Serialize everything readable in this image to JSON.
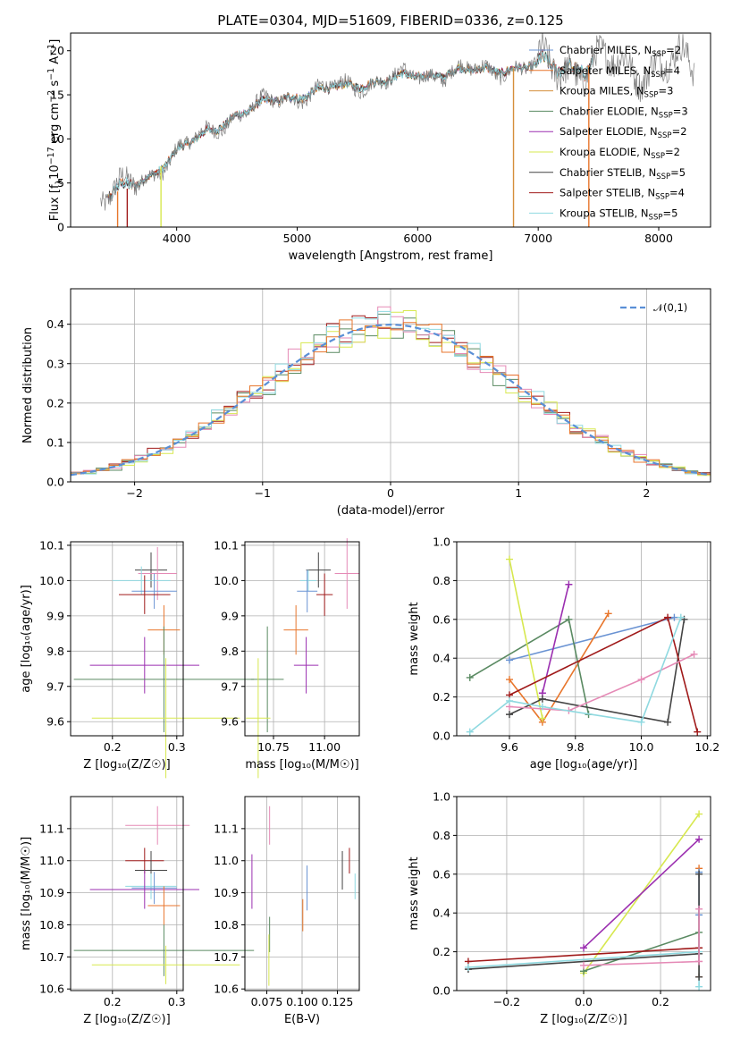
{
  "colors": {
    "c_miles": "#6a93d3",
    "s_miles": "#e8762c",
    "k_miles": "#d58f3b",
    "c_elodie": "#5a8a62",
    "s_elodie": "#9b2fb0",
    "k_elodie": "#d7e84f",
    "c_stelib": "#444444",
    "s_stelib": "#a01a1a",
    "k_stelib": "#8fd9e0",
    "pink": "#e58ab6",
    "normal": "#5a8fd6",
    "gray": "#7f7f7f"
  },
  "chart_data": [
    {
      "id": "spectrum",
      "type": "line",
      "title": "PLATE=0304, MJD=51609, FIBERID=0336, z=0.125",
      "xlabel": "wavelength [Angstrom, rest frame]",
      "ylabel_prefix": "Flux [f",
      "ylabel_sub": "λ",
      "ylabel_mid": "10",
      "ylabel_sup1": "−17",
      "ylabel_rest": " erg cm",
      "ylabel_sup2": "−2",
      "ylabel_s": " s",
      "ylabel_sup3": "−1",
      "ylabel_a": " A",
      "ylabel_sup4": "−1",
      "ylabel_end": "]",
      "xlim": [
        3120,
        8430
      ],
      "ylim": [
        0,
        22
      ],
      "xticks": [
        "4000",
        "5000",
        "6000",
        "7000",
        "8000"
      ],
      "yticks": [
        "0",
        "5",
        "10",
        "15",
        "20"
      ],
      "trend": [
        [
          3400,
          3.6
        ],
        [
          3600,
          4.4
        ],
        [
          3800,
          6.0
        ],
        [
          4000,
          8.6
        ],
        [
          4200,
          10.2
        ],
        [
          4500,
          12.8
        ],
        [
          4800,
          14.3
        ],
        [
          5200,
          15.5
        ],
        [
          5600,
          16.4
        ],
        [
          6000,
          17.2
        ],
        [
          6400,
          17.7
        ],
        [
          6800,
          18.0
        ],
        [
          7200,
          18.3
        ]
      ],
      "legend": [
        {
          "sub": "SSP",
          "label": "Chabrier MILES, N",
          "n": "=2",
          "color": "c_miles"
        },
        {
          "sub": "SSP",
          "label": "Salpeter MILES, N",
          "n": "=4",
          "color": "s_miles"
        },
        {
          "sub": "SSP",
          "label": "Kroupa MILES, N",
          "n": "=3",
          "color": "k_miles"
        },
        {
          "sub": "SSP",
          "label": "Chabrier ELODIE, N",
          "n": "=3",
          "color": "c_elodie"
        },
        {
          "sub": "SSP",
          "label": "Salpeter ELODIE, N",
          "n": "=2",
          "color": "s_elodie"
        },
        {
          "sub": "SSP",
          "label": "Kroupa ELODIE, N",
          "n": "=2",
          "color": "k_elodie"
        },
        {
          "sub": "SSP",
          "label": "Chabrier STELIB, N",
          "n": "=5",
          "color": "c_stelib"
        },
        {
          "sub": "SSP",
          "label": "Salpeter STELIB, N",
          "n": "=4",
          "color": "s_stelib"
        },
        {
          "sub": "SSP",
          "label": "Kroupa STELIB, N",
          "n": "=5",
          "color": "k_stelib"
        }
      ]
    },
    {
      "id": "residuals",
      "type": "histogram",
      "xlabel": "(data-model)/error",
      "ylabel": "Normed distribution",
      "xlim": [
        -2.5,
        2.5
      ],
      "ylim": [
        0,
        0.49
      ],
      "xticks": [
        -2,
        -1,
        0,
        1,
        2
      ],
      "xticklabels": [
        "−2",
        "−1",
        "0",
        "1",
        "2"
      ],
      "yticks": [
        0,
        0.1,
        0.2,
        0.3,
        0.4
      ],
      "yticklabels": [
        "0.0",
        "0.1",
        "0.2",
        "0.3",
        "0.4"
      ],
      "legend": "𝒩(0,1)",
      "normal": {
        "mean": 0,
        "sigma": 1
      },
      "series_colors": [
        "c_elodie",
        "s_stelib",
        "pink",
        "k_elodie",
        "k_stelib",
        "s_miles"
      ]
    },
    {
      "id": "age_vs_Z",
      "type": "errorbar",
      "xlabel": "Z [log₁₀(Z/Z☉)]",
      "ylabel": "age  [log₁₀(age/yr)]",
      "xlim": [
        0.135,
        0.31
      ],
      "ylim": [
        9.56,
        10.11
      ],
      "xticks": [
        0.2,
        0.3
      ],
      "xticklabels": [
        "0.2",
        "0.3"
      ],
      "yticks": [
        9.6,
        9.7,
        9.8,
        9.9,
        10.0,
        10.1
      ],
      "yticklabels": [
        "9.6",
        "9.7",
        "9.8",
        "9.9",
        "10.0",
        "10.1"
      ],
      "points": [
        {
          "x": 0.26,
          "xe": 0.025,
          "y": 10.03,
          "ye": 0.05,
          "color": "c_stelib"
        },
        {
          "x": 0.27,
          "xe": 0.03,
          "y": 10.02,
          "ye": 0.075,
          "color": "pink"
        },
        {
          "x": 0.245,
          "xe": 0.045,
          "y": 10.0,
          "ye": 0.04,
          "color": "k_stelib"
        },
        {
          "x": 0.265,
          "xe": 0.035,
          "y": 9.97,
          "ye": 0.05,
          "color": "c_miles"
        },
        {
          "x": 0.25,
          "xe": 0.04,
          "y": 9.96,
          "ye": 0.055,
          "color": "s_stelib"
        },
        {
          "x": 0.28,
          "xe": 0.025,
          "y": 9.86,
          "ye": 0.07,
          "color": "s_miles"
        },
        {
          "x": 0.25,
          "xe": 0.085,
          "y": 9.76,
          "ye": 0.08,
          "color": "s_elodie"
        },
        {
          "x": 0.28,
          "xe": 0.14,
          "y": 9.72,
          "ye": 0.15,
          "color": "c_elodie"
        },
        {
          "x": 0.283,
          "xe": 0.115,
          "y": 9.61,
          "ye": 0.17,
          "color": "k_elodie"
        }
      ]
    },
    {
      "id": "age_vs_mass",
      "type": "errorbar",
      "xlabel": "mass [log₁₀(M/M☉)]",
      "ylabel": "",
      "xlim": [
        10.61,
        11.17
      ],
      "ylim": [
        9.56,
        10.11
      ],
      "xticks": [
        10.75,
        11.0
      ],
      "xticklabels": [
        "10.75",
        "11.00"
      ],
      "yticks": [
        9.6,
        9.7,
        9.8,
        9.9,
        10.0,
        10.1
      ],
      "yticklabels": [
        "9.6",
        "9.7",
        "9.8",
        "9.9",
        "10.0",
        "10.1"
      ],
      "points": [
        {
          "x": 10.97,
          "xe": 0.06,
          "y": 10.03,
          "ye": 0.05,
          "color": "c_stelib"
        },
        {
          "x": 11.11,
          "xe": 0.06,
          "y": 10.02,
          "ye": 0.1,
          "color": "pink"
        },
        {
          "x": 10.92,
          "xe": 0.04,
          "y": 10.0,
          "ye": 0.03,
          "color": "k_stelib"
        },
        {
          "x": 10.915,
          "xe": 0.05,
          "y": 9.97,
          "ye": 0.06,
          "color": "c_miles"
        },
        {
          "x": 11.0,
          "xe": 0.04,
          "y": 9.96,
          "ye": 0.06,
          "color": "s_stelib"
        },
        {
          "x": 10.86,
          "xe": 0.06,
          "y": 9.86,
          "ye": 0.07,
          "color": "s_miles"
        },
        {
          "x": 10.91,
          "xe": 0.06,
          "y": 9.76,
          "ye": 0.08,
          "color": "s_elodie"
        },
        {
          "x": 10.72,
          "xe": 0.08,
          "y": 9.72,
          "ye": 0.15,
          "color": "c_elodie"
        },
        {
          "x": 10.675,
          "xe": 0.06,
          "y": 9.61,
          "ye": 0.17,
          "color": "k_elodie"
        }
      ]
    },
    {
      "id": "mass_weight_vs_age",
      "type": "line",
      "xlabel": "age  [log₁₀(age/yr)]",
      "ylabel": "mass weight",
      "xlim": [
        9.44,
        10.21
      ],
      "ylim": [
        0,
        1
      ],
      "xticks": [
        9.6,
        9.8,
        10.0,
        10.2
      ],
      "xticklabels": [
        "9.6",
        "9.8",
        "10.0",
        "10.2"
      ],
      "yticks": [
        0,
        0.2,
        0.4,
        0.6,
        0.8,
        1.0
      ],
      "yticklabels": [
        "0.0",
        "0.2",
        "0.4",
        "0.6",
        "0.8",
        "1.0"
      ],
      "series": [
        {
          "color": "c_miles",
          "x": [
            9.6,
            10.1
          ],
          "y": [
            0.39,
            0.61
          ]
        },
        {
          "color": "s_miles",
          "x": [
            9.6,
            9.7,
            9.9
          ],
          "y": [
            0.29,
            0.07,
            0.63
          ]
        },
        {
          "color": "c_elodie",
          "x": [
            9.48,
            9.78,
            9.84
          ],
          "y": [
            0.3,
            0.6,
            0.11
          ]
        },
        {
          "color": "s_elodie",
          "x": [
            9.7,
            9.78
          ],
          "y": [
            0.22,
            0.78
          ]
        },
        {
          "color": "k_elodie",
          "x": [
            9.6,
            9.7
          ],
          "y": [
            0.91,
            0.09
          ]
        },
        {
          "color": "c_stelib",
          "x": [
            9.6,
            9.7,
            10.08,
            10.13
          ],
          "y": [
            0.11,
            0.19,
            0.07,
            0.6
          ]
        },
        {
          "color": "s_stelib",
          "x": [
            9.6,
            10.08,
            10.17
          ],
          "y": [
            0.21,
            0.61,
            0.02
          ]
        },
        {
          "color": "pink",
          "x": [
            9.6,
            9.78,
            10.0,
            10.16
          ],
          "y": [
            0.15,
            0.13,
            0.29,
            0.42
          ]
        },
        {
          "color": "k_stelib",
          "x": [
            9.48,
            9.6,
            9.7,
            10.0,
            10.12
          ],
          "y": [
            0.02,
            0.18,
            0.15,
            0.07,
            0.61
          ]
        }
      ]
    },
    {
      "id": "mass_vs_Z",
      "type": "errorbar",
      "xlabel": "Z [log₁₀(Z/Z☉)]",
      "ylabel": "mass [log₁₀(M/M☉)]",
      "xlim": [
        0.135,
        0.31
      ],
      "ylim": [
        10.595,
        11.2
      ],
      "xticks": [
        0.2,
        0.3
      ],
      "xticklabels": [
        "0.2",
        "0.3"
      ],
      "yticks": [
        10.6,
        10.7,
        10.8,
        10.9,
        11.0,
        11.1
      ],
      "yticklabels": [
        "10.6",
        "10.7",
        "10.8",
        "10.9",
        "11.0",
        "11.1"
      ],
      "points": [
        {
          "x": 0.27,
          "xe": 0.05,
          "y": 11.11,
          "ye": 0.06,
          "color": "pink"
        },
        {
          "x": 0.25,
          "xe": 0.03,
          "y": 11.0,
          "ye": 0.04,
          "color": "s_stelib"
        },
        {
          "x": 0.26,
          "xe": 0.025,
          "y": 10.97,
          "ye": 0.06,
          "color": "c_stelib"
        },
        {
          "x": 0.26,
          "xe": 0.04,
          "y": 10.92,
          "ye": 0.04,
          "color": "k_stelib"
        },
        {
          "x": 0.265,
          "xe": 0.035,
          "y": 10.915,
          "ye": 0.05,
          "color": "c_miles"
        },
        {
          "x": 0.25,
          "xe": 0.085,
          "y": 10.91,
          "ye": 0.06,
          "color": "s_elodie"
        },
        {
          "x": 0.28,
          "xe": 0.025,
          "y": 10.86,
          "ye": 0.06,
          "color": "s_miles"
        },
        {
          "x": 0.28,
          "xe": 0.14,
          "y": 10.72,
          "ye": 0.08,
          "color": "c_elodie"
        },
        {
          "x": 0.283,
          "xe": 0.115,
          "y": 10.675,
          "ye": 0.06,
          "color": "k_elodie"
        }
      ]
    },
    {
      "id": "mass_vs_ebv",
      "type": "errorbar",
      "xlabel": "E(B-V)",
      "ylabel": "",
      "xlim": [
        0.0595,
        0.1405
      ],
      "ylim": [
        10.595,
        11.2
      ],
      "xticks": [
        0.075,
        0.1,
        0.125
      ],
      "xticklabels": [
        "0.075",
        "0.100",
        "0.125"
      ],
      "yticks": [
        10.6,
        10.7,
        10.8,
        10.9,
        11.0,
        11.1
      ],
      "yticklabels": [
        "10.6",
        "10.7",
        "10.8",
        "10.9",
        "11.0",
        "11.1"
      ],
      "points": [
        {
          "x": 0.077,
          "xe": 0,
          "y": 11.11,
          "ye": 0.06,
          "color": "pink"
        },
        {
          "x": 0.1335,
          "xe": 0,
          "y": 11.0,
          "ye": 0.04,
          "color": "s_stelib"
        },
        {
          "x": 0.1285,
          "xe": 0,
          "y": 10.97,
          "ye": 0.06,
          "color": "c_stelib"
        },
        {
          "x": 0.1375,
          "xe": 0,
          "y": 10.92,
          "ye": 0.04,
          "color": "k_stelib"
        },
        {
          "x": 0.1035,
          "xe": 0,
          "y": 10.915,
          "ye": 0.07,
          "color": "c_miles"
        },
        {
          "x": 0.0645,
          "xe": 0,
          "y": 10.935,
          "ye": 0.085,
          "color": "s_elodie"
        },
        {
          "x": 0.1005,
          "xe": 0,
          "y": 10.83,
          "ye": 0.05,
          "color": "s_miles"
        },
        {
          "x": 0.077,
          "xe": 0,
          "y": 10.77,
          "ye": 0.055,
          "color": "c_elodie"
        },
        {
          "x": 0.0765,
          "xe": 0,
          "y": 10.69,
          "ye": 0.08,
          "color": "k_elodie"
        }
      ]
    },
    {
      "id": "mass_weight_vs_Z",
      "type": "line",
      "xlabel": "Z [log₁₀(Z/Z☉)]",
      "ylabel": "mass weight",
      "xlim": [
        -0.33,
        0.33
      ],
      "ylim": [
        0,
        1
      ],
      "xticks": [
        -0.2,
        0.0,
        0.2
      ],
      "xticklabels": [
        "−0.2",
        "0.0",
        "0.2"
      ],
      "yticks": [
        0,
        0.2,
        0.4,
        0.6,
        0.8,
        1.0
      ],
      "yticklabels": [
        "0.0",
        "0.2",
        "0.4",
        "0.6",
        "0.8",
        "1.0"
      ],
      "series": [
        {
          "color": "k_elodie",
          "x": [
            0.0,
            0.3
          ],
          "y": [
            0.09,
            0.91
          ]
        },
        {
          "color": "s_elodie",
          "x": [
            0.0,
            0.3
          ],
          "y": [
            0.22,
            0.78
          ]
        },
        {
          "color": "c_elodie",
          "x": [
            0.0,
            0.3
          ],
          "y": [
            0.1,
            0.3
          ]
        },
        {
          "color": "s_stelib",
          "x": [
            -0.3,
            0.3
          ],
          "y": [
            0.15,
            0.22
          ]
        },
        {
          "color": "c_stelib",
          "x": [
            -0.3,
            0.3
          ],
          "y": [
            0.11,
            0.19
          ]
        },
        {
          "color": "pink",
          "x": [
            0.0,
            0.3
          ],
          "y": [
            0.13,
            0.15
          ]
        },
        {
          "color": "k_stelib",
          "x": [
            -0.3,
            0.3
          ],
          "y": [
            0.12,
            0.2
          ]
        },
        {
          "color": "s_miles",
          "x": [
            0.3,
            0.3
          ],
          "y": [
            0.07,
            0.63
          ]
        },
        {
          "color": "k_stelib",
          "x": [
            0.3,
            0.3
          ],
          "y": [
            0.02,
            0.61
          ]
        },
        {
          "color": "c_miles",
          "x": [
            0.3,
            0.3
          ],
          "y": [
            0.39,
            0.61
          ]
        },
        {
          "color": "c_stelib",
          "x": [
            0.3,
            0.3
          ],
          "y": [
            0.07,
            0.6
          ]
        },
        {
          "color": "pink",
          "x": [
            0.3,
            0.3
          ],
          "y": [
            0.15,
            0.42
          ]
        }
      ]
    }
  ]
}
